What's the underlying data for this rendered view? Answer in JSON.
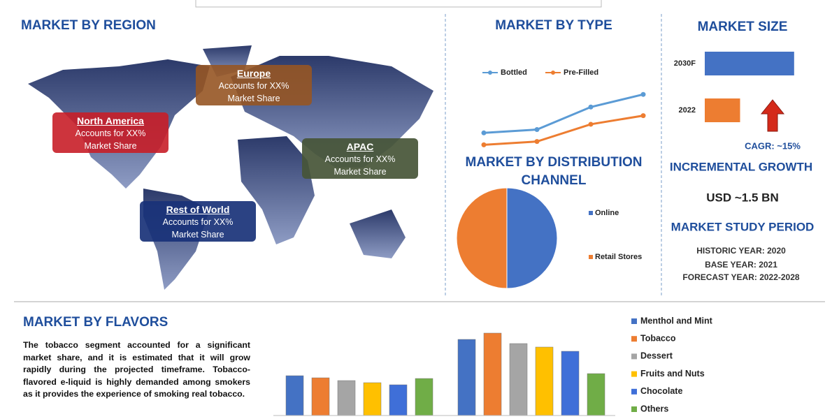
{
  "regions": {
    "title": "MARKET BY REGION",
    "callouts": [
      {
        "name": "Europe",
        "line1": "Accounts for XX%",
        "line2": "Market Share"
      },
      {
        "name": "North America",
        "line1": "Accounts for XX%",
        "line2": "Market Share"
      },
      {
        "name": "APAC",
        "line1": "Accounts for XX%",
        "line2": "Market Share"
      },
      {
        "name": "Rest of World",
        "line1": "Accounts for XX%",
        "line2": "Market Share"
      }
    ]
  },
  "chart_data": [
    {
      "type": "line",
      "title": "MARKET BY TYPE",
      "categories": [
        null,
        null,
        null,
        null
      ],
      "ylim": [
        0,
        100
      ],
      "series": [
        {
          "name": "Bottled",
          "color": "#5b9bd5",
          "values": [
            26,
            31,
            65,
            84
          ]
        },
        {
          "name": "Pre-Filled",
          "color": "#ed7d31",
          "values": [
            8,
            13,
            39,
            52
          ]
        }
      ]
    },
    {
      "type": "pie",
      "title": "MARKET BY DISTRIBUTION CHANNEL",
      "categories": [
        "Online",
        "Retail Stores"
      ],
      "values": [
        50,
        50
      ],
      "colors": [
        "#4472c4",
        "#ed7d31"
      ]
    },
    {
      "type": "bar",
      "orientation": "horizontal",
      "title": "MARKET SIZE",
      "categories": [
        "2030F",
        "2022"
      ],
      "values": [
        124,
        49
      ],
      "colors": [
        "#4472c4",
        "#ed7d31"
      ],
      "xlim": [
        0,
        130
      ],
      "annotation": "CAGR:  ~15%"
    },
    {
      "type": "bar",
      "orientation": "vertical",
      "title": "MARKET BY FLAVORS",
      "categories": [
        null,
        null
      ],
      "ylim": [
        0,
        130
      ],
      "series": [
        {
          "name": "Menthol and Mint",
          "color": "#4472c4",
          "values": [
            57,
            109
          ]
        },
        {
          "name": "Tobacco",
          "color": "#ed7d31",
          "values": [
            54,
            118
          ]
        },
        {
          "name": "Dessert",
          "color": "#a5a5a5",
          "values": [
            50,
            103
          ]
        },
        {
          "name": "Fruits and Nuts",
          "color": "#ffc000",
          "values": [
            47,
            98
          ]
        },
        {
          "name": "Chocolate",
          "color": "#3f6fd8",
          "values": [
            44,
            92
          ]
        },
        {
          "name": "Others",
          "color": "#70ad47",
          "values": [
            53,
            60
          ]
        }
      ]
    }
  ],
  "growth": {
    "title": "INCREMENTAL GROWTH",
    "value": "USD ~1.5 BN"
  },
  "study": {
    "title": "MARKET STUDY PERIOD",
    "lines": [
      "HISTORIC YEAR: 2020",
      "BASE YEAR: 2021",
      "FORECAST YEAR: 2022-2028"
    ]
  },
  "flavors_text": "The tobacco segment accounted for a significant market share, and it is estimated that it will grow rapidly during the projected timeframe. Tobacco-flavored e-liquid is highly demanded among smokers as it provides the experience of smoking real tobacco."
}
